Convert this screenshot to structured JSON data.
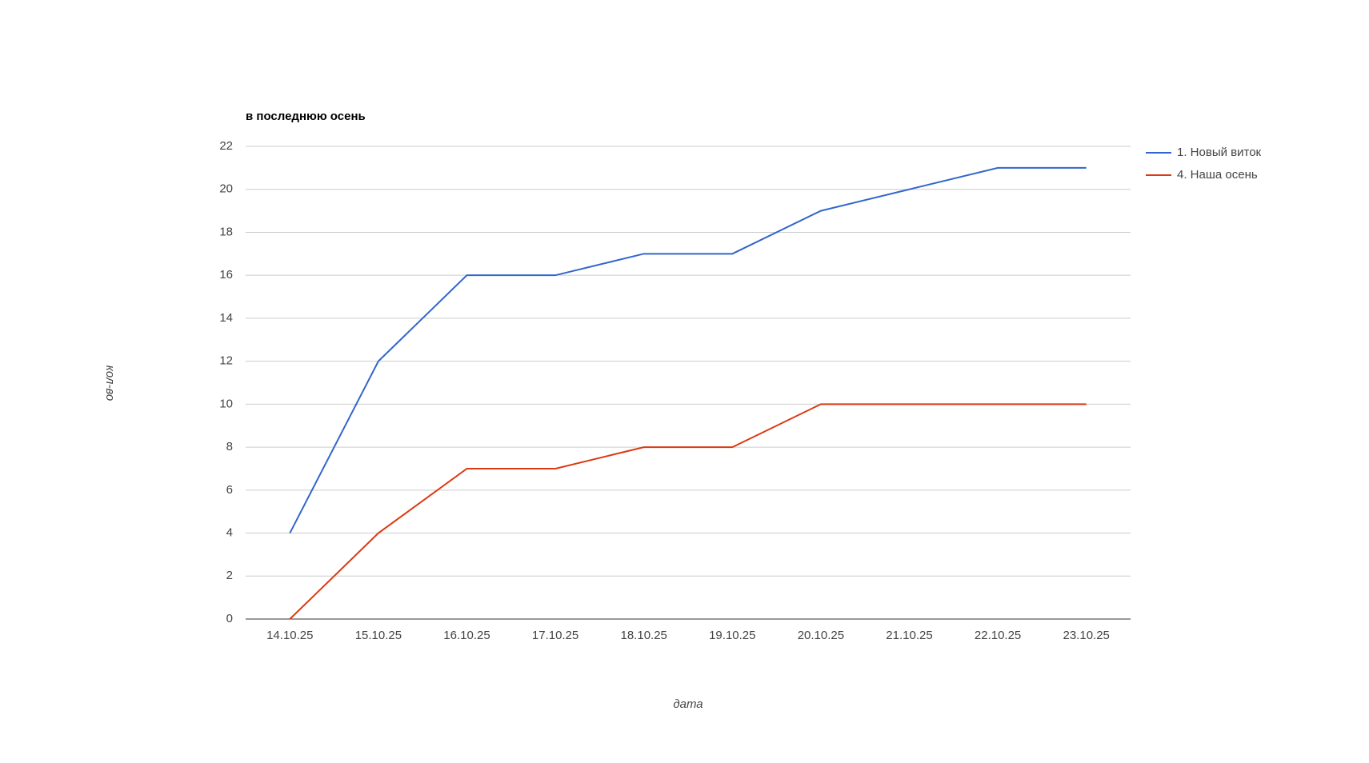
{
  "chart_data": {
    "type": "line",
    "title": "в последнюю осень",
    "x_label": "дата",
    "y_label": "кол-во",
    "categories": [
      "14.10.25",
      "15.10.25",
      "16.10.25",
      "17.10.25",
      "18.10.25",
      "19.10.25",
      "20.10.25",
      "21.10.25",
      "22.10.25",
      "23.10.25"
    ],
    "series": [
      {
        "name": "1. Новый виток",
        "color": "#3366cc",
        "values": [
          4,
          12,
          16,
          16,
          17,
          17,
          19,
          20,
          21,
          21
        ]
      },
      {
        "name": "4. Наша осень",
        "color": "#dc3912",
        "values": [
          0,
          4,
          7,
          7,
          8,
          8,
          10,
          10,
          10,
          10
        ]
      }
    ],
    "ylim": [
      0,
      22
    ],
    "yticks": [
      0,
      2,
      4,
      6,
      8,
      10,
      12,
      14,
      16,
      18,
      20,
      22
    ],
    "grid": true,
    "legend": "right"
  }
}
